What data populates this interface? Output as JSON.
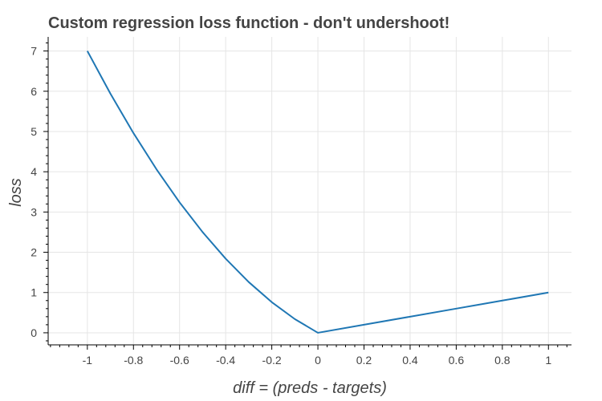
{
  "chart_data": {
    "type": "line",
    "title": "Custom regression loss function - don't undershoot!",
    "xlabel": "diff = (preds - targets)",
    "ylabel": "loss",
    "xlim": [
      -1.17,
      1.1
    ],
    "ylim": [
      -0.3,
      7.35
    ],
    "grid": true,
    "x_ticks": [
      -1,
      -0.8,
      -0.6,
      -0.4,
      -0.2,
      0,
      0.2,
      0.4,
      0.6,
      0.8,
      1
    ],
    "x_tick_labels": [
      "-1",
      "-0.8",
      "-0.6",
      "-0.4",
      "-0.2",
      "0",
      "0.2",
      "0.4",
      "0.6",
      "0.8",
      "1"
    ],
    "y_ticks": [
      0,
      1,
      2,
      3,
      4,
      5,
      6,
      7
    ],
    "y_tick_labels": [
      "0",
      "1",
      "2",
      "3",
      "4",
      "5",
      "6",
      "7"
    ],
    "series": [
      {
        "color": "#1f77b4",
        "x": [
          -1,
          -0.9,
          -0.8,
          -0.7,
          -0.6,
          -0.5,
          -0.4,
          -0.3,
          -0.2,
          -0.1,
          0,
          0.2,
          0.4,
          0.6,
          0.8,
          1
        ],
        "y": [
          7,
          5.94,
          4.96,
          4.06,
          3.24,
          2.5,
          1.84,
          1.26,
          0.76,
          0.34,
          0,
          0.2,
          0.4,
          0.6,
          0.8,
          1
        ]
      }
    ]
  }
}
